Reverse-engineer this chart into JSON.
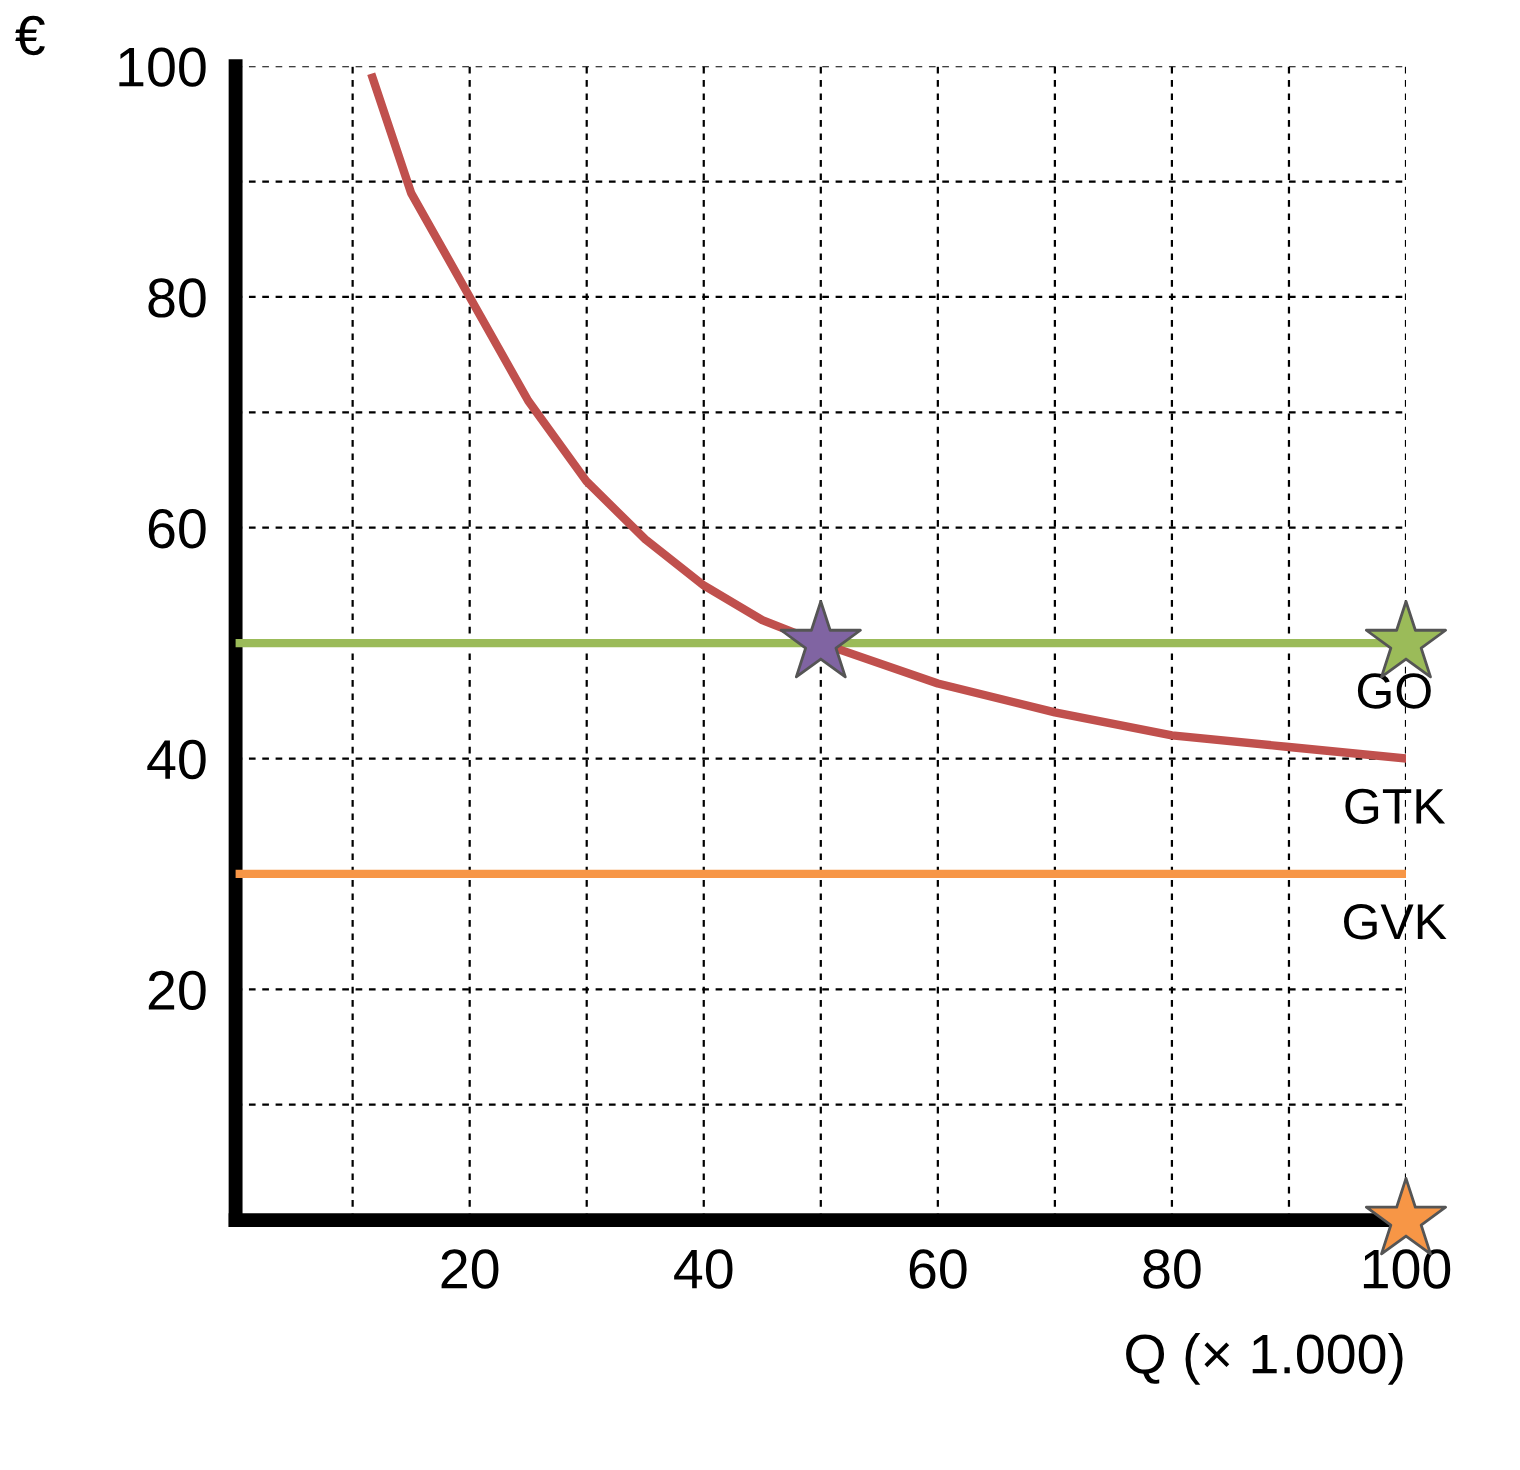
{
  "chart_data": {
    "type": "line",
    "xlabel": "Q (× 1.000)",
    "ylabel": "€",
    "xlim": [
      0,
      100
    ],
    "ylim": [
      0,
      100
    ],
    "xticks": [
      {
        "value": 10,
        "label": null
      },
      20,
      {
        "value": 30,
        "label": null
      },
      40,
      {
        "value": 50,
        "label": null
      },
      60,
      {
        "value": 70,
        "label": null
      },
      80,
      {
        "value": 90,
        "label": null
      },
      100
    ],
    "yticks": [
      {
        "value": 10,
        "label": null
      },
      20,
      {
        "value": 30,
        "label": null
      },
      40,
      {
        "value": 50,
        "label": null
      },
      60,
      {
        "value": 70,
        "label": null
      },
      80,
      {
        "value": 90,
        "label": null
      },
      100
    ],
    "grid": true,
    "line_style": "solid",
    "series": [
      {
        "name": "GO",
        "color": "#9bbb59",
        "x": [
          0,
          100
        ],
        "values": [
          50,
          50
        ]
      },
      {
        "name": "GTK",
        "color": "#c0504d",
        "x": [
          11.7,
          15,
          20,
          25,
          30,
          35,
          40,
          45,
          50,
          60,
          70,
          80,
          90,
          100
        ],
        "values": [
          99,
          89,
          80,
          71,
          64,
          59,
          55,
          52,
          50,
          46.5,
          44,
          42,
          41,
          40
        ]
      },
      {
        "name": "GVK",
        "color": "#f79646",
        "x": [
          0,
          100
        ],
        "values": [
          30,
          30
        ]
      },
      {
        "type": "scatter",
        "marker": "star",
        "color": "#8064a2",
        "x": [
          50
        ],
        "values": [
          50
        ]
      },
      {
        "type": "scatter",
        "marker": "star",
        "color": "#9bbb59",
        "x": [
          100
        ],
        "values": [
          50
        ]
      },
      {
        "type": "scatter",
        "marker": "star",
        "color": "#f79646",
        "x": [
          100
        ],
        "values": [
          0
        ]
      }
    ]
  }
}
